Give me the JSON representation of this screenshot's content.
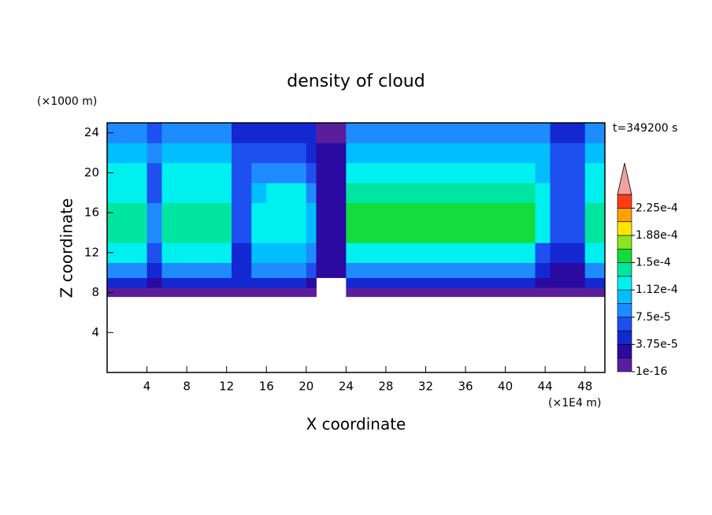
{
  "chart_data": {
    "type": "contour",
    "title": "density of cloud",
    "x_label": "X coordinate",
    "y_label": "Z coordinate",
    "x_unit": "(×1E4 m)",
    "y_unit": "(×1000 m)",
    "annotation": "t=349200 s",
    "xlim": [
      0,
      50
    ],
    "ylim": [
      0,
      25
    ],
    "xticks": [
      4,
      8,
      12,
      16,
      20,
      24,
      28,
      32,
      36,
      40,
      44,
      48
    ],
    "yticks": [
      4,
      8,
      12,
      16,
      20,
      24
    ],
    "x_edges": [
      0,
      4,
      5.5,
      12.5,
      14.5,
      16,
      20,
      21,
      24,
      43,
      44.5,
      48,
      50
    ],
    "y_edges": [
      0,
      7.6,
      8.5,
      9.5,
      11,
      13,
      17,
      19,
      21,
      23,
      25
    ],
    "z": [
      [
        null,
        null,
        null,
        null,
        null,
        null,
        null,
        null,
        null,
        null,
        null,
        null
      ],
      [
        1e-05,
        1e-05,
        1e-05,
        1e-05,
        1e-05,
        1e-05,
        1e-05,
        null,
        1e-05,
        1e-05,
        1e-05,
        1e-05
      ],
      [
        4.5e-05,
        2.5e-05,
        4.5e-05,
        4.5e-05,
        4.5e-05,
        4.5e-05,
        2.5e-05,
        null,
        4.5e-05,
        2.5e-05,
        2.5e-05,
        4.5e-05
      ],
      [
        8.5e-05,
        4.5e-05,
        8.5e-05,
        4.5e-05,
        8.5e-05,
        8.5e-05,
        6e-05,
        2.5e-05,
        8.5e-05,
        4.5e-05,
        3e-05,
        8.5e-05
      ],
      [
        0.00012,
        6e-05,
        0.00012,
        5e-05,
        0.000105,
        0.000105,
        8e-05,
        2e-05,
        0.000125,
        6e-05,
        5e-05,
        0.00012
      ],
      [
        0.000142,
        8e-05,
        0.000142,
        6e-05,
        0.00013,
        0.00013,
        0.0001,
        2e-05,
        0.00016,
        0.00013,
        7e-05,
        0.000142
      ],
      [
        0.00013,
        7e-05,
        0.00013,
        6e-05,
        0.00011,
        0.000115,
        9e-05,
        2e-05,
        0.000135,
        0.00012,
        6e-05,
        0.00013
      ],
      [
        0.000115,
        7e-05,
        0.000115,
        6e-05,
        9e-05,
        8e-05,
        7e-05,
        2e-05,
        0.000115,
        0.00011,
        6e-05,
        0.000115
      ],
      [
        0.000105,
        8e-05,
        0.000105,
        6e-05,
        7e-05,
        6e-05,
        5e-05,
        2e-05,
        0.000105,
        0.0001,
        6e-05,
        0.000105
      ],
      [
        9e-05,
        6e-05,
        8e-05,
        5e-05,
        5e-05,
        5e-05,
        4e-05,
        1e-05,
        9e-05,
        8e-05,
        5e-05,
        9e-05
      ]
    ],
    "colorbar": {
      "levels": [
        {
          "value": 1e-16,
          "label": "1e-16"
        },
        1.875e-05,
        {
          "value": 3.75e-05,
          "label": "3.75e-5"
        },
        5.625e-05,
        {
          "value": 7.5e-05,
          "label": "7.5e-5"
        },
        9.375e-05,
        {
          "value": 0.0001125,
          "label": "1.12e-4"
        },
        0.00013125,
        {
          "value": 0.00015,
          "label": "1.5e-4"
        },
        0.00016875,
        {
          "value": 0.0001875,
          "label": "1.88e-4"
        },
        0.00020625,
        {
          "value": 0.000225,
          "label": "2.25e-4"
        },
        0.00024375
      ],
      "colors": [
        "#5a1e9c",
        "#2a0aa0",
        "#1428d2",
        "#1e50f0",
        "#1e8cff",
        "#00beff",
        "#00f0f0",
        "#00e6a0",
        "#14dc3c",
        "#8ce61e",
        "#ffe600",
        "#ffa000",
        "#ff3c14"
      ],
      "extend_color": "#f0a0a0"
    }
  }
}
